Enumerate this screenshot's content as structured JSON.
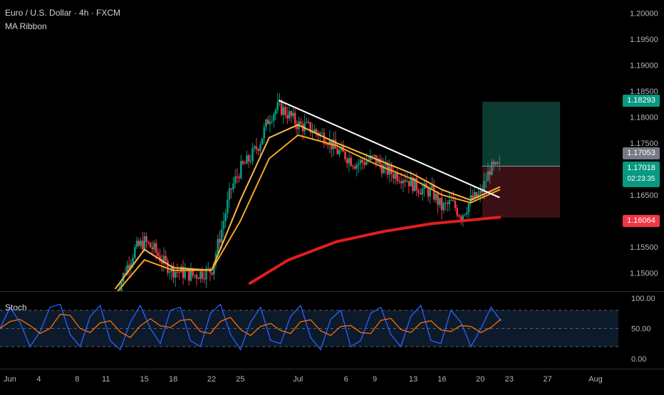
{
  "header": {
    "title": "Euro / U.S. Dollar · 4h · FXCM",
    "indicator": "MA Ribbon"
  },
  "stoch_panel": {
    "label": "Stoch",
    "ticks": [
      "100.00",
      "50.00",
      "0.00"
    ]
  },
  "price_tags": {
    "take_profit": "1.18293",
    "entry": "1.17053",
    "current": "1.17018",
    "countdown": "02:23:35",
    "stop_loss": "1.16064"
  },
  "colors": {
    "bull": "#089981",
    "bear": "#f23645",
    "ma_fast": "#ffb74d",
    "ma_slow": "#f5a623",
    "ma_long": "#e01e1e",
    "trendline": "#ffffff",
    "stoch_k": "#2962ff",
    "stoch_d": "#ff6d00",
    "tp_zone": "#0b3b31",
    "sl_zone": "#3b1015"
  },
  "chart_data": {
    "type": "candlestick",
    "title": "Euro / U.S. Dollar · 4h · FXCM",
    "ylim": [
      1.1465,
      1.2025
    ],
    "y_ticks": [
      "1.20000",
      "1.19500",
      "1.19000",
      "1.18500",
      "1.18000",
      "1.17500",
      "1.17000",
      "1.16500",
      "1.16000",
      "1.15500",
      "1.15000"
    ],
    "y_tick_values": [
      1.2,
      1.195,
      1.19,
      1.185,
      1.18,
      1.175,
      1.17,
      1.165,
      1.16,
      1.155,
      1.15
    ],
    "x_ticks": [
      "Jun",
      "4",
      "8",
      "11",
      "15",
      "18",
      "22",
      "25",
      "Jul",
      "6",
      "9",
      "13",
      "16",
      "20",
      "23",
      "27",
      "Aug"
    ],
    "x_tick_values": [
      1,
      4,
      8,
      11,
      15,
      18,
      22,
      25,
      31,
      36,
      39,
      43,
      46,
      50,
      53,
      57,
      62
    ],
    "xlim": [
      1,
      63
    ],
    "close_path": [
      [
        12,
        1.1455
      ],
      [
        13,
        1.1505
      ],
      [
        14,
        1.1545
      ],
      [
        15,
        1.156
      ],
      [
        16,
        1.1545
      ],
      [
        17,
        1.152
      ],
      [
        18,
        1.1505
      ],
      [
        19,
        1.15
      ],
      [
        20,
        1.1495
      ],
      [
        21,
        1.15
      ],
      [
        22,
        1.1505
      ],
      [
        23,
        1.158
      ],
      [
        24,
        1.166
      ],
      [
        25,
        1.17
      ],
      [
        26,
        1.172
      ],
      [
        27,
        1.175
      ],
      [
        28,
        1.18
      ],
      [
        29,
        1.182
      ],
      [
        30,
        1.1805
      ],
      [
        31,
        1.1785
      ],
      [
        32,
        1.178
      ],
      [
        33,
        1.177
      ],
      [
        34,
        1.176
      ],
      [
        35,
        1.1735
      ],
      [
        36,
        1.1725
      ],
      [
        37,
        1.171
      ],
      [
        38,
        1.1715
      ],
      [
        39,
        1.172
      ],
      [
        40,
        1.17
      ],
      [
        41,
        1.169
      ],
      [
        42,
        1.1685
      ],
      [
        43,
        1.167
      ],
      [
        44,
        1.166
      ],
      [
        45,
        1.1655
      ],
      [
        46,
        1.1625
      ],
      [
        47,
        1.1635
      ],
      [
        48,
        1.161
      ],
      [
        49,
        1.164
      ],
      [
        50,
        1.165
      ],
      [
        51,
        1.17
      ],
      [
        52,
        1.1702
      ]
    ],
    "series": [
      {
        "name": "MA fast",
        "points": [
          [
            12,
            1.147
          ],
          [
            15,
            1.1545
          ],
          [
            18,
            1.151
          ],
          [
            22,
            1.1505
          ],
          [
            25,
            1.164
          ],
          [
            28,
            1.176
          ],
          [
            31,
            1.1785
          ],
          [
            35,
            1.175
          ],
          [
            39,
            1.172
          ],
          [
            43,
            1.169
          ],
          [
            46,
            1.166
          ],
          [
            49,
            1.164
          ],
          [
            52,
            1.1665
          ]
        ]
      },
      {
        "name": "MA slow",
        "points": [
          [
            12,
            1.146
          ],
          [
            15,
            1.1525
          ],
          [
            18,
            1.1505
          ],
          [
            22,
            1.1505
          ],
          [
            25,
            1.16
          ],
          [
            28,
            1.172
          ],
          [
            31,
            1.1765
          ],
          [
            35,
            1.1745
          ],
          [
            39,
            1.171
          ],
          [
            43,
            1.168
          ],
          [
            46,
            1.165
          ],
          [
            49,
            1.1635
          ],
          [
            52,
            1.166
          ]
        ]
      },
      {
        "name": "MA long",
        "points": [
          [
            26,
            1.148
          ],
          [
            30,
            1.1525
          ],
          [
            35,
            1.156
          ],
          [
            40,
            1.158
          ],
          [
            45,
            1.1595
          ],
          [
            52,
            1.1607
          ]
        ]
      }
    ],
    "trendline": [
      [
        29,
        1.1832
      ],
      [
        52,
        1.1645
      ]
    ],
    "position": {
      "x_start": 50.2,
      "x_end": 58.3,
      "entry": 1.17053,
      "take_profit": 1.18293,
      "stop_loss": 1.16064
    },
    "stoch": {
      "ylim": [
        0,
        100
      ],
      "bands": [
        80,
        50,
        20
      ],
      "k": [
        50,
        85,
        60,
        20,
        45,
        85,
        90,
        40,
        20,
        70,
        88,
        30,
        15,
        60,
        88,
        50,
        25,
        80,
        85,
        30,
        20,
        75,
        90,
        40,
        15,
        60,
        85,
        30,
        25,
        70,
        88,
        35,
        15,
        65,
        80,
        20,
        30,
        75,
        85,
        40,
        20,
        70,
        88,
        30,
        25,
        80,
        60,
        20,
        50,
        85,
        62
      ]
    }
  }
}
